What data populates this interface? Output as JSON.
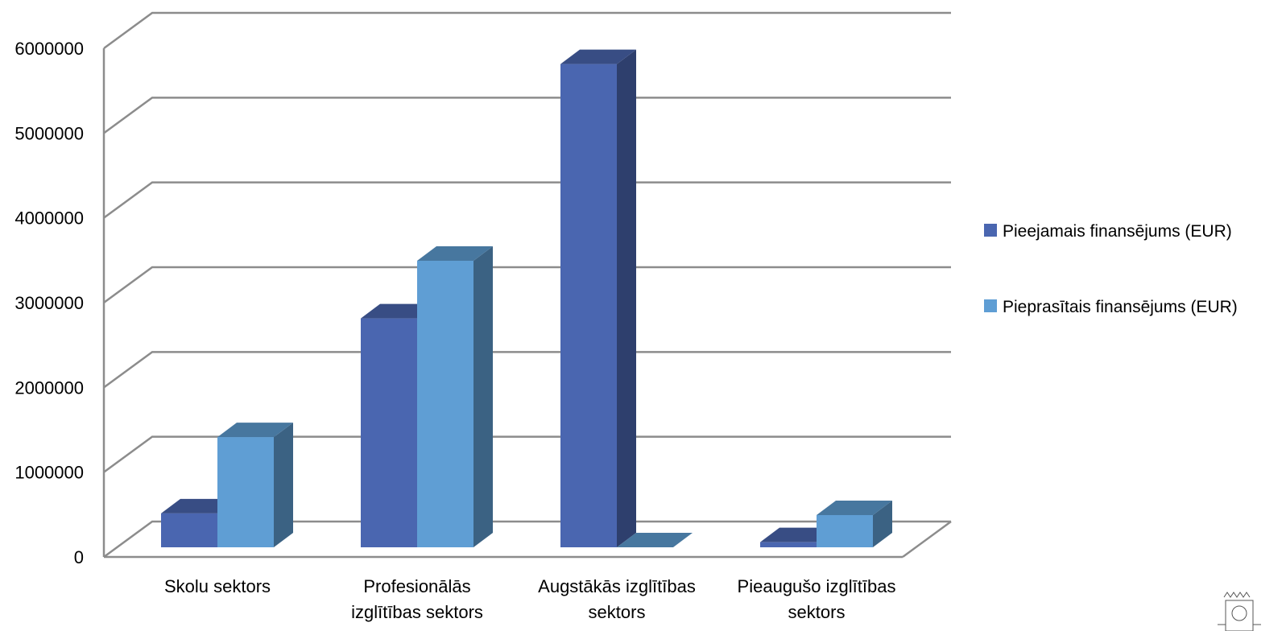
{
  "chart_data": {
    "type": "bar",
    "title": "",
    "xlabel": "",
    "ylabel": "",
    "ylim": [
      0,
      6000000
    ],
    "yticks": [
      "0",
      "1000000",
      "2000000",
      "3000000",
      "4000000",
      "5000000",
      "6000000"
    ],
    "grid": true,
    "legend_position": "right",
    "categories": [
      [
        "Skolu sektors"
      ],
      [
        "Profesionālās",
        "izglītības sektors"
      ],
      [
        "Augstākās izglītības",
        "sektors"
      ],
      [
        "Pieaugušo izglītības",
        "sektors"
      ]
    ],
    "series": [
      {
        "name": "Pieejamais finansējums (EUR)",
        "color": "#4a66b0",
        "values": [
          400000,
          2700000,
          5700000,
          60000
        ]
      },
      {
        "name": "Pieprasītais finansējums (EUR)",
        "color": "#5f9ed4",
        "values": [
          1300000,
          3380000,
          0,
          380000
        ]
      }
    ]
  },
  "emblem": {
    "icon": "coat-of-arms-icon"
  }
}
